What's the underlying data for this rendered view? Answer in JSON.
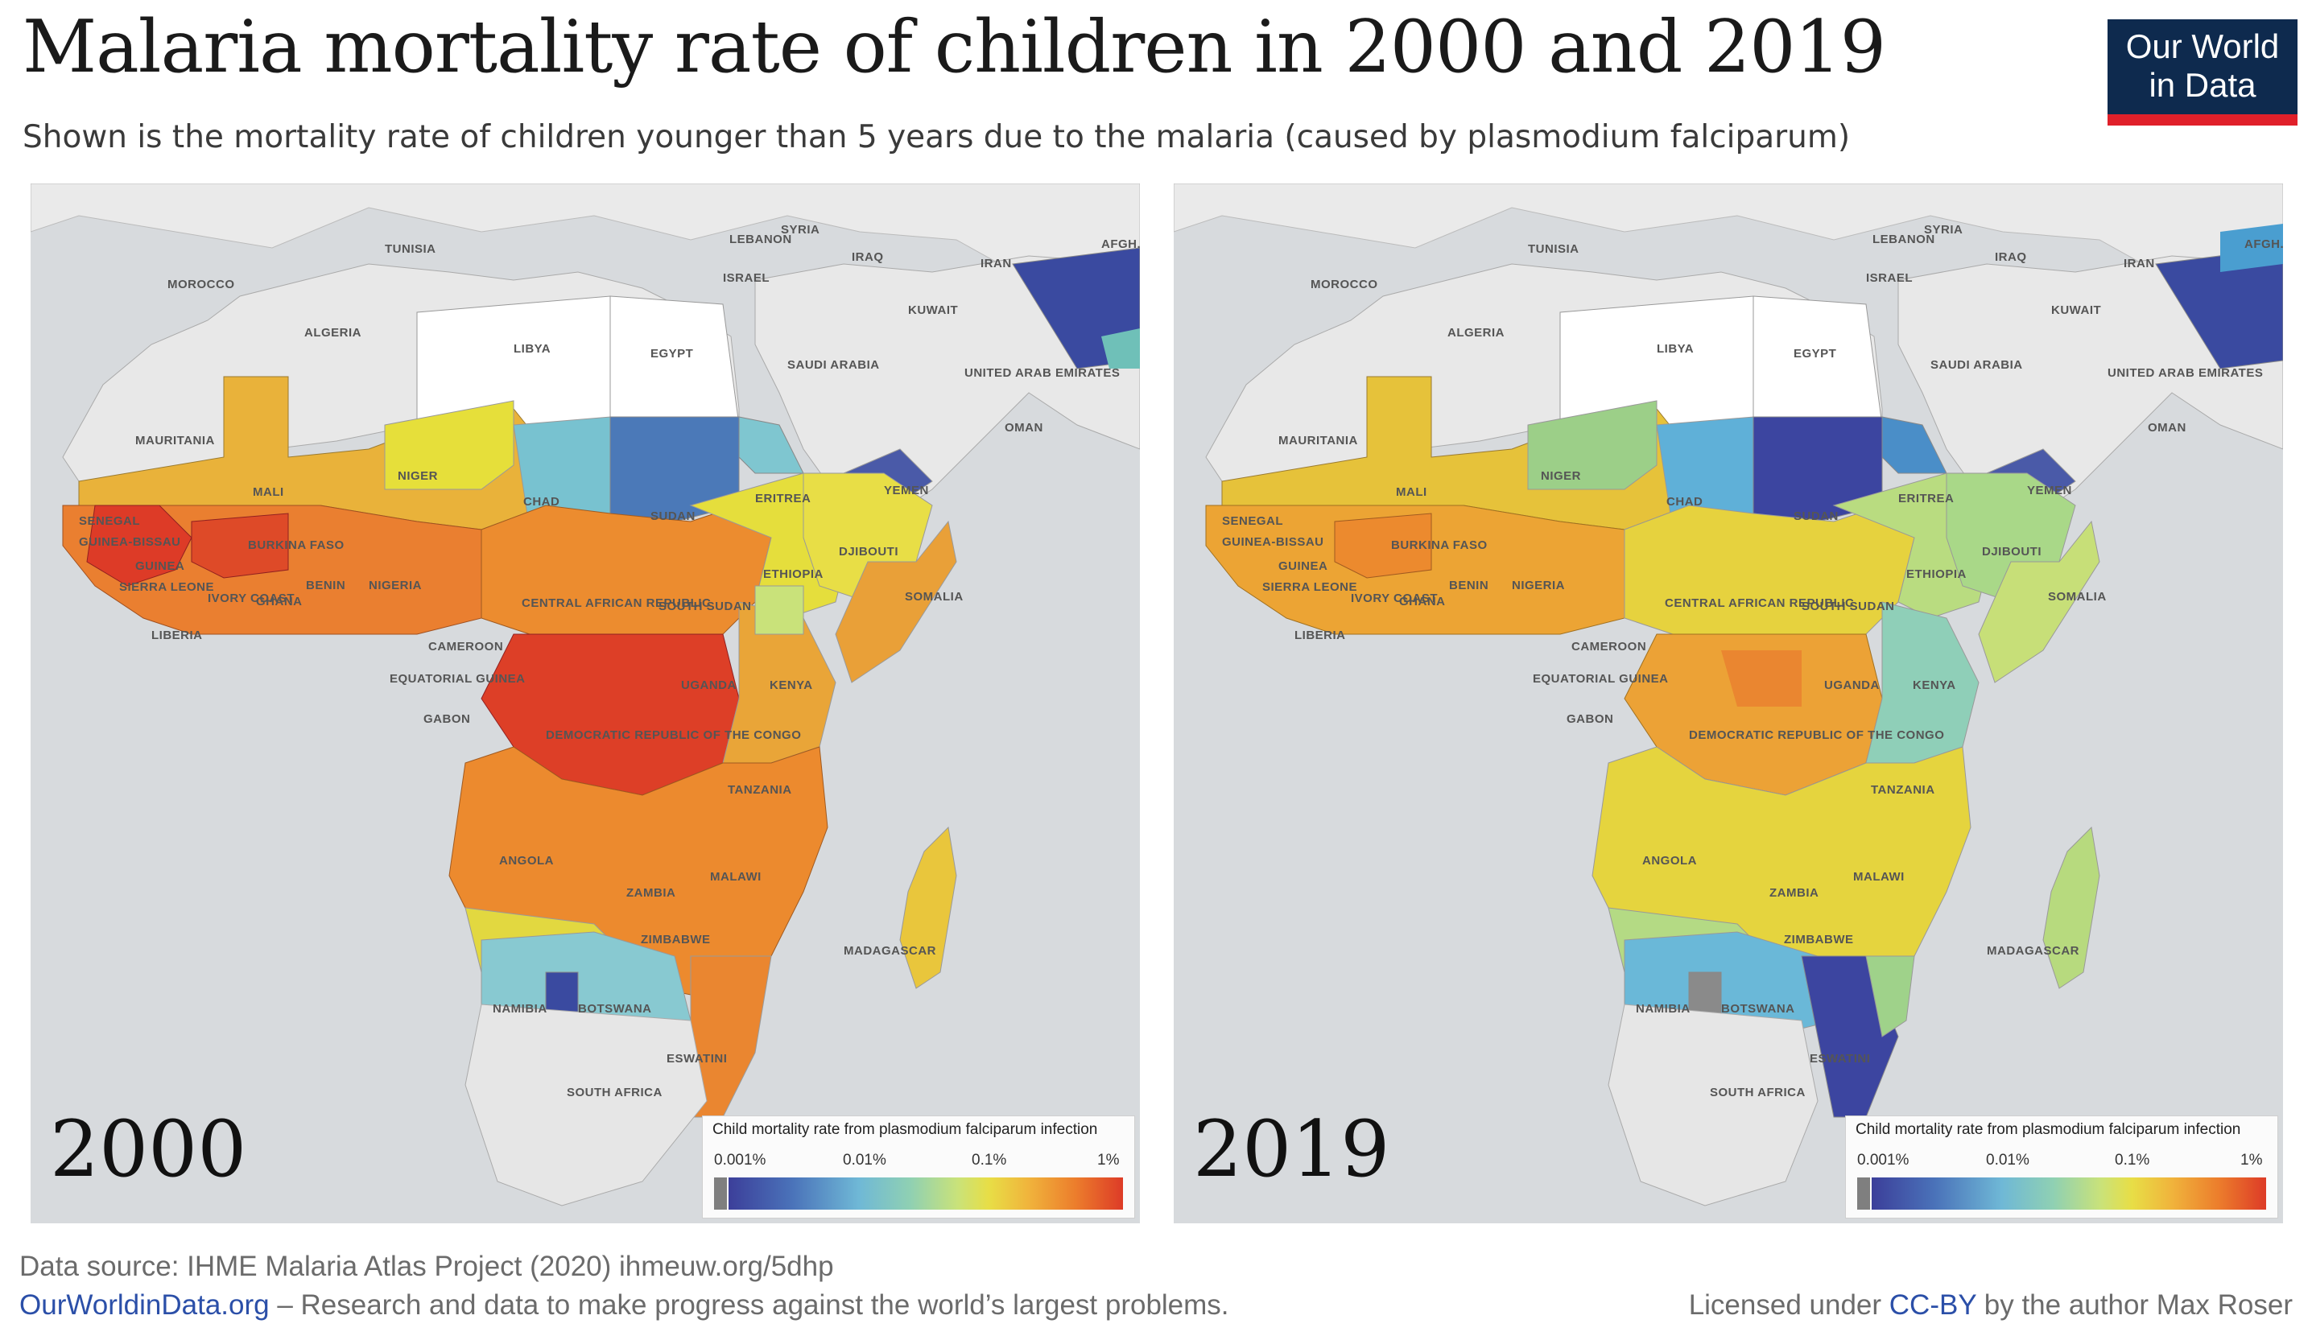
{
  "title": "Malaria mortality rate of children in 2000 and 2019",
  "subtitle": "Shown is the mortality rate of children younger than 5 years due to the malaria (caused by plasmodium falciparum)",
  "logo": {
    "line1": "Our World",
    "line2": "in Data"
  },
  "legend": {
    "title": "Child mortality rate from plasmodium falciparum infection",
    "ticks": [
      "0.001%",
      "0.01%",
      "0.1%",
      "1%"
    ],
    "scale_colors": [
      "#7f7f7f",
      "#3c3f9a",
      "#4a72b9",
      "#6fb8d6",
      "#8fd0b3",
      "#c9e27a",
      "#e8de46",
      "#f0b43c",
      "#ec7d2c",
      "#dd3b27"
    ]
  },
  "maps": [
    {
      "year": "2000"
    },
    {
      "year": "2019"
    }
  ],
  "country_labels": [
    "TUNISIA",
    "MOROCCO",
    "ALGERIA",
    "LIBYA",
    "EGYPT",
    "LEBANON",
    "SYRIA",
    "ISRAEL",
    "IRAQ",
    "IRAN",
    "KUWAIT",
    "SAUDI ARABIA",
    "UNITED ARAB EMIRATES",
    "OMAN",
    "YEMEN",
    "AFGH.",
    "MAURITANIA",
    "MALI",
    "NIGER",
    "CHAD",
    "SUDAN",
    "ERITREA",
    "DJIBOUTI",
    "SENEGAL",
    "GUINEA-BISSAU",
    "GUINEA",
    "BURKINA FASO",
    "SIERRA LEONE",
    "LIBERIA",
    "IVORY COAST",
    "GHANA",
    "BENIN",
    "NIGERIA",
    "ETHIOPIA",
    "SOUTH SUDAN",
    "SOMALIA",
    "CENTRAL AFRICAN REPUBLIC",
    "CAMEROON",
    "EQUATORIAL GUINEA",
    "GABON",
    "UGANDA",
    "KENYA",
    "DEMOCRATIC REPUBLIC OF THE CONGO",
    "TANZANIA",
    "ANGOLA",
    "ZAMBIA",
    "MALAWI",
    "MADAGASCAR",
    "ZIMBABWE",
    "NAMIBIA",
    "BOTSWANA",
    "ESWATINI",
    "SOUTH AFRICA"
  ],
  "source": "Data source: IHME Malaria Atlas Project (2020) ihmeuw.org/5dhp",
  "footer": {
    "site": "OurWorldinData.org",
    "tagline": " – Research and data to make progress against the world’s largest problems.",
    "license_prefix": "Licensed under ",
    "license_link": "CC-BY",
    "license_suffix": " by the author Max Roser"
  }
}
